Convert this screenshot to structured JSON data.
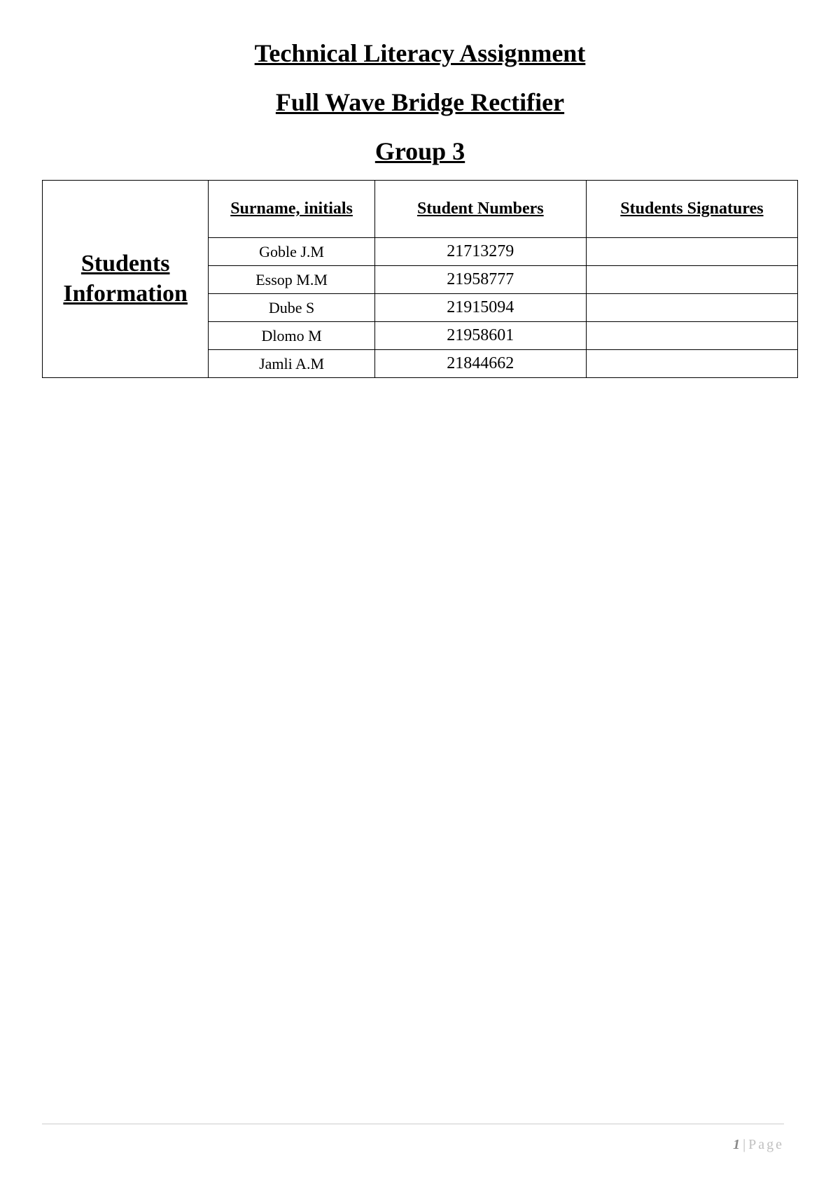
{
  "titles": {
    "main": "Technical Literacy Assignment",
    "sub": "Full Wave Bridge Rectifier",
    "group": "Group 3"
  },
  "table": {
    "rowHeader": "Students Information",
    "columns": {
      "surname": "Surname, initials",
      "number": "Student Numbers",
      "signature": "Students Signatures"
    },
    "rows": [
      {
        "name": "Goble J.M",
        "number": "21713279",
        "signature": ""
      },
      {
        "name": "Essop M.M",
        "number": "21958777",
        "signature": ""
      },
      {
        "name": "Dube S",
        "number": "21915094",
        "signature": ""
      },
      {
        "name": "Dlomo M",
        "number": "21958601",
        "signature": ""
      },
      {
        "name": "Jamli A.M",
        "number": "21844662",
        "signature": ""
      }
    ]
  },
  "footer": {
    "pageNumber": "1",
    "pageLabel": "Page"
  },
  "styling": {
    "pageWidth": 1200,
    "pageHeight": 1697,
    "backgroundColor": "#ffffff",
    "textColor": "#000000",
    "borderColor": "#000000",
    "footerLineColor": "#cccccc",
    "footerTextColor": "#b8b8b8",
    "titleFontSize": 36,
    "headerFontSize": 24,
    "rowHeaderFontSize": 34,
    "dataFontSize": 22,
    "numberFontSize": 24,
    "fontFamily": "Times New Roman"
  }
}
